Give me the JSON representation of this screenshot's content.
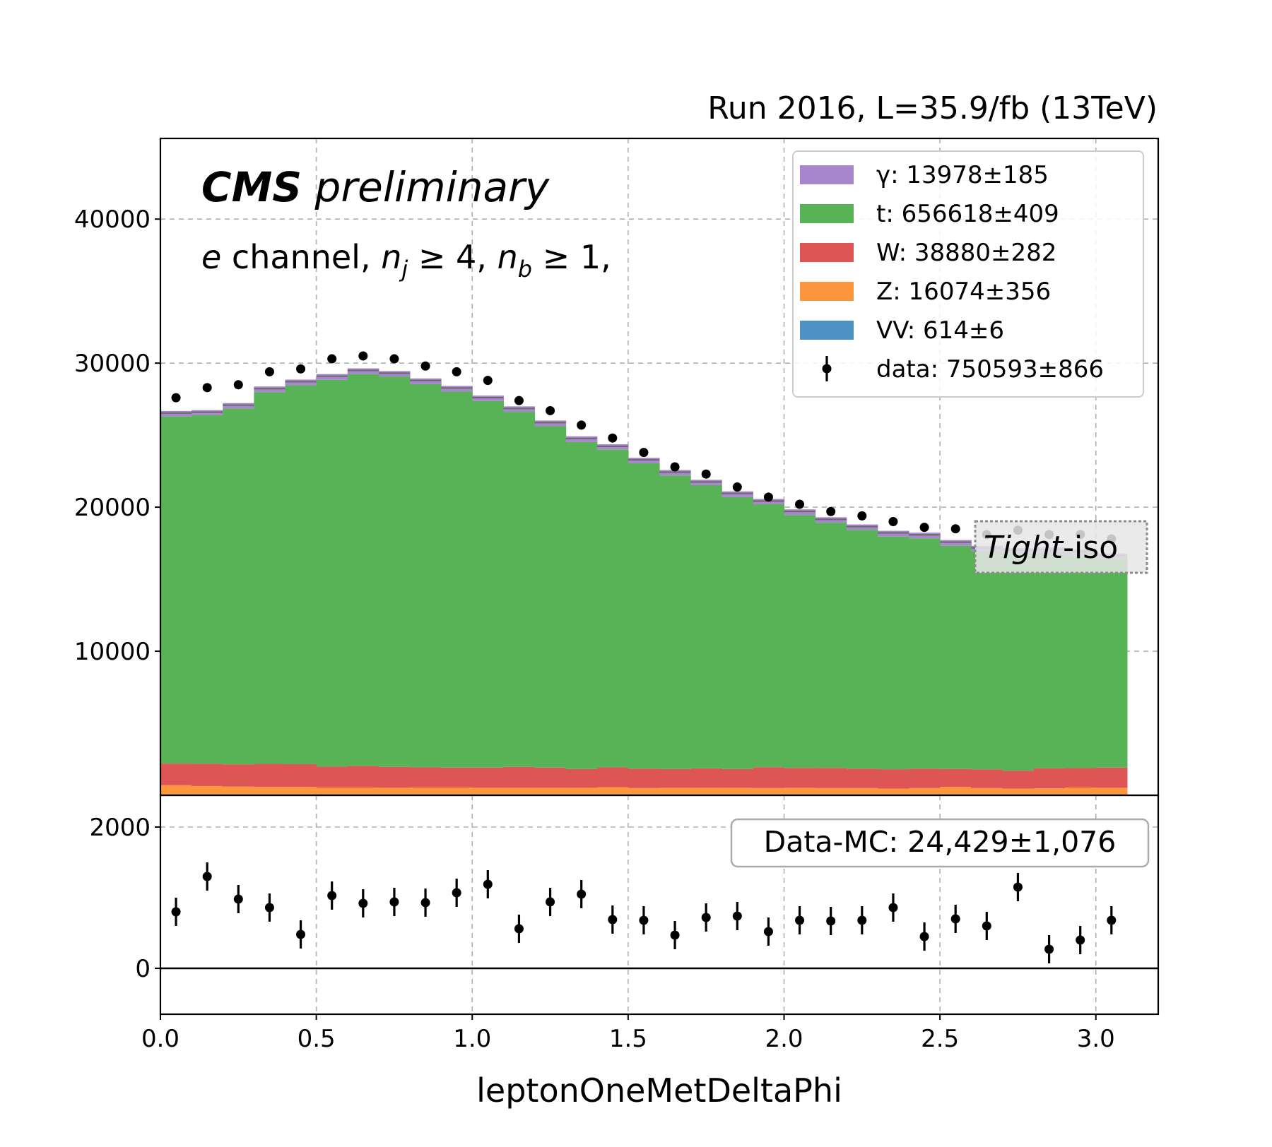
{
  "header": {
    "run_label": "Run 2016, L=35.9/fb (13TeV)",
    "cms_bold": "CMS",
    "cms_italic": "preliminary",
    "channel_prefix": "e",
    "channel_text": " channel, ",
    "nj_symbol": "n",
    "nj_sub": "j",
    "nj_cut": " ≥ 4, ",
    "nb_symbol": "n",
    "nb_sub": "b",
    "nb_cut": " ≥ 1,",
    "tight_italic": "Tight",
    "tight_rest": "-iso"
  },
  "ratio_box": {
    "text": "Data-MC: 24,429±1,076"
  },
  "chart_data": [
    {
      "type": "bar",
      "stacked": true,
      "xlabel": "leptonOneMetDeltaPhi",
      "ylabel": "",
      "xlim": [
        0.0,
        3.2
      ],
      "ylim": [
        0,
        45600
      ],
      "grid": true,
      "legend_placement": "top-right",
      "x_ticks": [
        0.0,
        0.5,
        1.0,
        1.5,
        2.0,
        2.5,
        3.0
      ],
      "x_tick_labels": [
        "0.0",
        "0.5",
        "1.0",
        "1.5",
        "2.0",
        "2.5",
        "3.0"
      ],
      "y_ticks": [
        10000,
        20000,
        30000,
        40000
      ],
      "y_tick_labels": [
        "10000",
        "20000",
        "30000",
        "40000"
      ],
      "bin_edges": [
        0.0,
        0.1,
        0.2,
        0.3,
        0.4,
        0.5,
        0.6,
        0.7,
        0.8,
        0.9,
        1.0,
        1.1,
        1.2,
        1.3,
        1.4,
        1.5,
        1.6,
        1.7,
        1.8,
        1.9,
        2.0,
        2.1,
        2.2,
        2.3,
        2.4,
        2.5,
        2.6,
        2.7,
        2.8,
        2.9,
        3.0,
        3.1
      ],
      "series": [
        {
          "name": "VV",
          "legend_label": "VV: 614±6",
          "color": "#4e92c4",
          "values": [
            20,
            20,
            20,
            20,
            20,
            20,
            20,
            20,
            20,
            20,
            20,
            20,
            20,
            20,
            20,
            20,
            20,
            20,
            20,
            20,
            20,
            20,
            20,
            20,
            20,
            20,
            20,
            20,
            20,
            20,
            20
          ]
        },
        {
          "name": "Z",
          "legend_label": "Z: 16074±356",
          "color": "#fd973e",
          "values": [
            680,
            620,
            580,
            560,
            560,
            520,
            520,
            500,
            520,
            520,
            500,
            500,
            500,
            500,
            540,
            480,
            500,
            500,
            500,
            480,
            500,
            480,
            480,
            440,
            480,
            560,
            480,
            440,
            460,
            520,
            500
          ]
        },
        {
          "name": "W",
          "legend_label": "W: 38880±282",
          "color": "#de5555",
          "values": [
            1500,
            1550,
            1550,
            1600,
            1580,
            1450,
            1500,
            1450,
            1400,
            1380,
            1400,
            1450,
            1400,
            1300,
            1380,
            1350,
            1300,
            1350,
            1300,
            1450,
            1380,
            1400,
            1350,
            1350,
            1350,
            1250,
            1300,
            1250,
            1400,
            1350,
            1400
          ]
        },
        {
          "name": "t",
          "legend_label": "t: 656618±409",
          "color": "#57b356",
          "values": [
            24100,
            24200,
            24700,
            25800,
            26300,
            26850,
            27200,
            27100,
            26600,
            26100,
            25450,
            24650,
            23700,
            22700,
            22050,
            21200,
            20380,
            19660,
            18880,
            18250,
            17550,
            17020,
            16570,
            16150,
            15990,
            15490,
            15120,
            15050,
            14940,
            14780,
            14490
          ]
        },
        {
          "name": "γ",
          "legend_label": "γ: 13978±185",
          "color": "#a886cb",
          "values": [
            380,
            350,
            380,
            400,
            400,
            400,
            400,
            380,
            400,
            400,
            380,
            380,
            400,
            400,
            380,
            380,
            380,
            370,
            400,
            370,
            400,
            380,
            380,
            400,
            390,
            400,
            400,
            400,
            400,
            400,
            380
          ]
        }
      ],
      "data": {
        "name": "data",
        "legend_label": "data: 750593±866",
        "color": "#000000",
        "x": [
          0.05,
          0.15,
          0.25,
          0.35,
          0.45,
          0.55,
          0.65,
          0.75,
          0.85,
          0.95,
          1.05,
          1.15,
          1.25,
          1.35,
          1.45,
          1.55,
          1.65,
          1.75,
          1.85,
          1.95,
          2.05,
          2.15,
          2.25,
          2.35,
          2.45,
          2.55,
          2.65,
          2.75,
          2.85,
          2.95,
          3.05
        ],
        "y": [
          27600,
          28300,
          28500,
          29400,
          29600,
          30300,
          30500,
          30300,
          29800,
          29400,
          28800,
          27400,
          26700,
          25700,
          24800,
          23800,
          22800,
          22300,
          21400,
          20700,
          20200,
          19700,
          19400,
          19000,
          18600,
          18500,
          18100,
          18400,
          18100,
          18100,
          17800
        ]
      },
      "legend_order": [
        "γ",
        "t",
        "W",
        "Z",
        "VV",
        "data"
      ]
    },
    {
      "type": "scatter",
      "xlabel": "leptonOneMetDeltaPhi",
      "ylabel": "",
      "xlim": [
        0.0,
        3.2
      ],
      "ylim": [
        -650,
        2450
      ],
      "grid": true,
      "reference_line": 0,
      "y_ticks": [
        0,
        2000
      ],
      "y_tick_labels": [
        "0",
        "2000"
      ],
      "x": [
        0.05,
        0.15,
        0.25,
        0.35,
        0.45,
        0.55,
        0.65,
        0.75,
        0.85,
        0.95,
        1.05,
        1.15,
        1.25,
        1.35,
        1.45,
        1.55,
        1.65,
        1.75,
        1.85,
        1.95,
        2.05,
        2.15,
        2.25,
        2.35,
        2.45,
        2.55,
        2.65,
        2.75,
        2.85,
        2.95,
        3.05
      ],
      "y": [
        800,
        1300,
        980,
        860,
        480,
        1030,
        920,
        940,
        930,
        1070,
        1190,
        560,
        940,
        1050,
        690,
        680,
        470,
        720,
        740,
        520,
        680,
        670,
        680,
        860,
        450,
        700,
        600,
        1150,
        270,
        400,
        680
      ],
      "y_err": [
        200,
        200,
        200,
        200,
        200,
        200,
        200,
        200,
        200,
        200,
        200,
        200,
        200,
        200,
        200,
        200,
        200,
        200,
        200,
        200,
        200,
        200,
        200,
        200,
        200,
        200,
        200,
        200,
        200,
        200,
        200
      ]
    }
  ]
}
